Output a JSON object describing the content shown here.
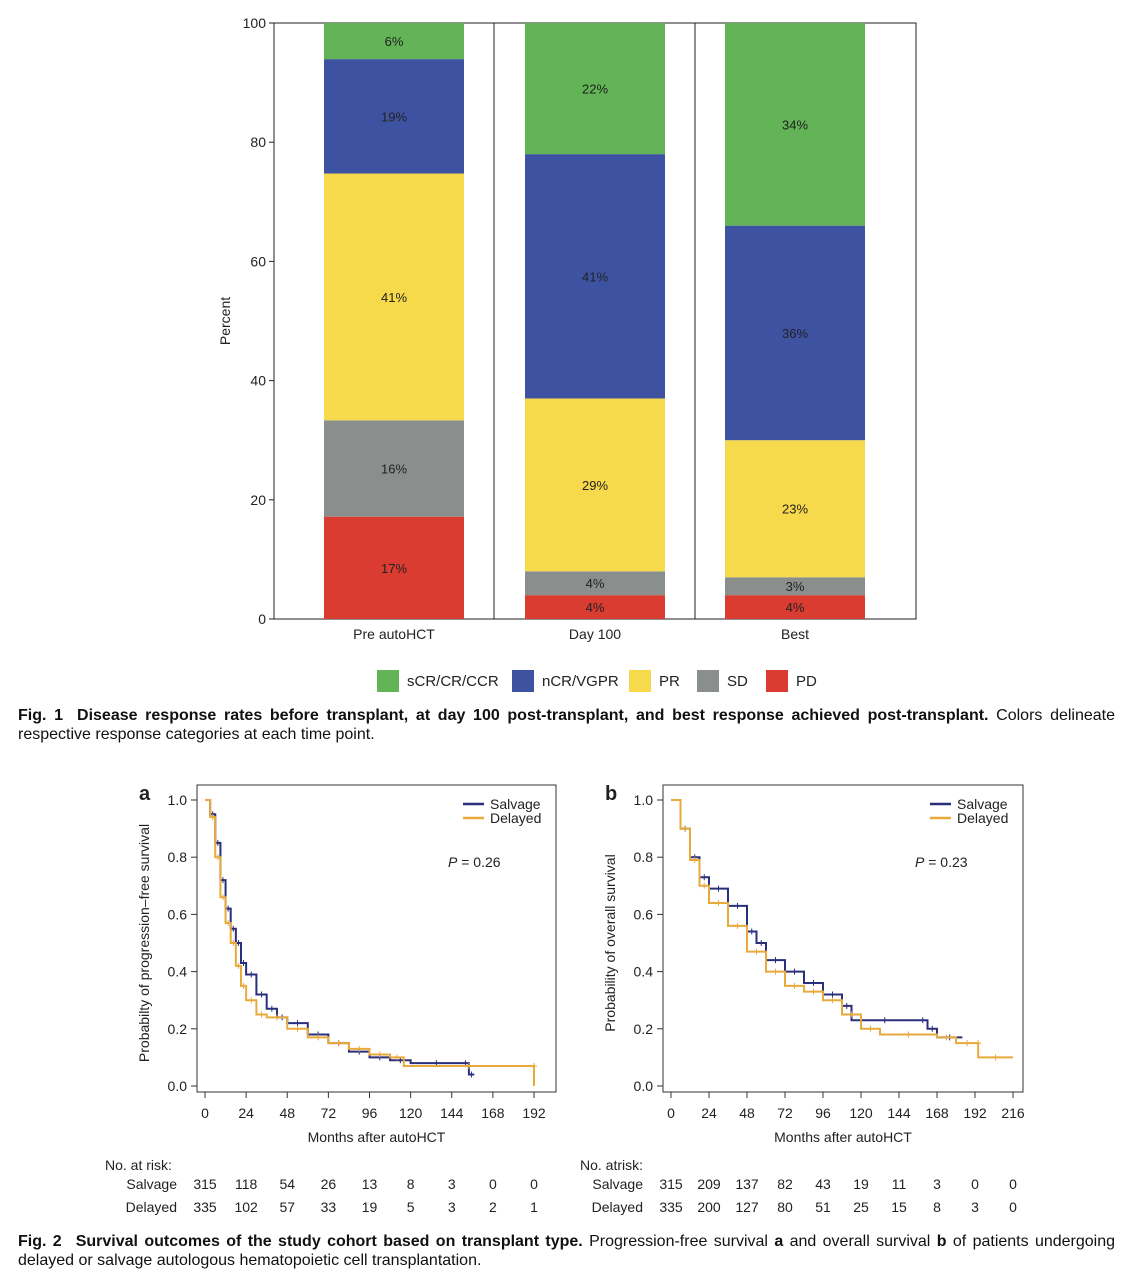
{
  "colors": {
    "sCR/CR/CCR": "#62b457",
    "nCR/VGPR": "#3e52a2",
    "PR": "#f7d94c",
    "SD": "#8a8f8d",
    "PD": "#db3c31",
    "salvage": "#2a2f7c",
    "delayed": "#e9aa3c"
  },
  "fig1": {
    "caption_label": "Fig. 1",
    "caption_bold": "Disease response rates before transplant, at day 100 post-transplant, and best response achieved post-transplant.",
    "caption_text": "Colors delineate respective response categories at each time point."
  },
  "fig2": {
    "caption_label": "Fig. 2",
    "caption_bold": "Survival outcomes of the study cohort based on transplant type.",
    "caption_pre": "Progression-free survival",
    "caption_a": "a",
    "caption_mid": "and overall survival",
    "caption_b": "b",
    "caption_post": "of patients undergoing delayed or salvage autologous hematopoietic cell transplantation."
  },
  "chart_data": [
    {
      "type": "bar",
      "stacked": true,
      "ylabel": "Percent",
      "ylim": [
        0,
        100
      ],
      "yticks": [
        "0",
        "20",
        "40",
        "60",
        "80",
        "100"
      ],
      "categories": [
        "Pre autoHCT",
        "Day 100",
        "Best"
      ],
      "legend_position": "bottom",
      "series": [
        {
          "name": "PD",
          "values": [
            17,
            4,
            4
          ],
          "labels": [
            "17%",
            "4%",
            "4%"
          ]
        },
        {
          "name": "SD",
          "values": [
            16,
            4,
            3
          ],
          "labels": [
            "16%",
            "4%",
            "3%"
          ]
        },
        {
          "name": "PR",
          "values": [
            41,
            29,
            23
          ],
          "labels": [
            "41%",
            "29%",
            "23%"
          ]
        },
        {
          "name": "nCR/VGPR",
          "values": [
            19,
            41,
            36
          ],
          "labels": [
            "19%",
            "41%",
            "36%"
          ]
        },
        {
          "name": "sCR/CR/CCR",
          "values": [
            6,
            22,
            34
          ],
          "labels": [
            "6%",
            "22%",
            "34%"
          ]
        }
      ],
      "legend_order": [
        "sCR/CR/CCR",
        "nCR/VGPR",
        "PR",
        "SD",
        "PD"
      ]
    },
    {
      "type": "line",
      "panel": "a",
      "ylabel": "Probabilty of progression–free survival",
      "xlabel": "Months after autoHCT",
      "xlim": [
        0,
        192
      ],
      "ylim": [
        0,
        1
      ],
      "xticks": [
        "0",
        "24",
        "48",
        "72",
        "96",
        "120",
        "144",
        "168",
        "192"
      ],
      "yticks": [
        "0.0",
        "0.2",
        "0.4",
        "0.6",
        "0.8",
        "1.0"
      ],
      "annotation": {
        "p_label": "P",
        "p_value": " = 0.26"
      },
      "legend_position": "top-right",
      "series": [
        {
          "name": "Salvage",
          "x": [
            0,
            3,
            6,
            9,
            12,
            15,
            18,
            21,
            24,
            30,
            36,
            42,
            48,
            60,
            72,
            84,
            96,
            108,
            120,
            150,
            154,
            157
          ],
          "y": [
            1,
            0.95,
            0.85,
            0.72,
            0.62,
            0.55,
            0.5,
            0.43,
            0.39,
            0.32,
            0.27,
            0.24,
            0.22,
            0.18,
            0.15,
            0.12,
            0.1,
            0.09,
            0.08,
            0.08,
            0.04,
            0.04
          ]
        },
        {
          "name": "Delayed",
          "x": [
            0,
            3,
            6,
            9,
            12,
            15,
            18,
            21,
            24,
            30,
            36,
            48,
            60,
            72,
            84,
            96,
            108,
            116,
            192,
            192
          ],
          "y": [
            1,
            0.94,
            0.8,
            0.66,
            0.57,
            0.5,
            0.42,
            0.35,
            0.3,
            0.25,
            0.24,
            0.2,
            0.17,
            0.15,
            0.13,
            0.11,
            0.1,
            0.07,
            0.07,
            0.0
          ]
        }
      ],
      "risk_table": {
        "title": "No. at risk:",
        "rows": [
          {
            "name": "Salvage",
            "values": [
              "315",
              "118",
              "54",
              "26",
              "13",
              "8",
              "3",
              "0",
              "0"
            ]
          },
          {
            "name": "Delayed",
            "values": [
              "335",
              "102",
              "57",
              "33",
              "19",
              "5",
              "3",
              "2",
              "1"
            ]
          }
        ]
      }
    },
    {
      "type": "line",
      "panel": "b",
      "ylabel": "Probability of overall survival",
      "xlabel": "Months after autoHCT",
      "xlim": [
        0,
        216
      ],
      "ylim": [
        0,
        1
      ],
      "xticks": [
        "0",
        "24",
        "48",
        "72",
        "96",
        "120",
        "144",
        "168",
        "192",
        "216"
      ],
      "yticks": [
        "0.0",
        "0.2",
        "0.4",
        "0.6",
        "0.8",
        "1.0"
      ],
      "annotation": {
        "p_label": "P",
        "p_value": " = 0.23"
      },
      "legend_position": "top-right",
      "series": [
        {
          "name": "Salvage",
          "x": [
            0,
            6,
            12,
            18,
            24,
            36,
            48,
            54,
            60,
            72,
            84,
            96,
            108,
            114,
            156,
            162,
            168,
            184
          ],
          "y": [
            1,
            0.9,
            0.8,
            0.73,
            0.69,
            0.63,
            0.54,
            0.5,
            0.44,
            0.4,
            0.36,
            0.32,
            0.28,
            0.23,
            0.23,
            0.2,
            0.17,
            0.17
          ]
        },
        {
          "name": "Delayed",
          "x": [
            0,
            6,
            12,
            18,
            24,
            36,
            48,
            60,
            72,
            84,
            96,
            108,
            120,
            132,
            168,
            180,
            194,
            194,
            216
          ],
          "y": [
            1,
            0.9,
            0.79,
            0.7,
            0.64,
            0.56,
            0.47,
            0.4,
            0.35,
            0.33,
            0.3,
            0.25,
            0.2,
            0.18,
            0.17,
            0.15,
            0.15,
            0.1,
            0.1
          ]
        }
      ],
      "risk_table": {
        "title": "No. atrisk:",
        "rows": [
          {
            "name": "Salvage",
            "values": [
              "315",
              "209",
              "137",
              "82",
              "43",
              "19",
              "11",
              "3",
              "0",
              "0"
            ]
          },
          {
            "name": "Delayed",
            "values": [
              "335",
              "200",
              "127",
              "80",
              "51",
              "25",
              "15",
              "8",
              "3",
              "0"
            ]
          }
        ]
      }
    }
  ]
}
